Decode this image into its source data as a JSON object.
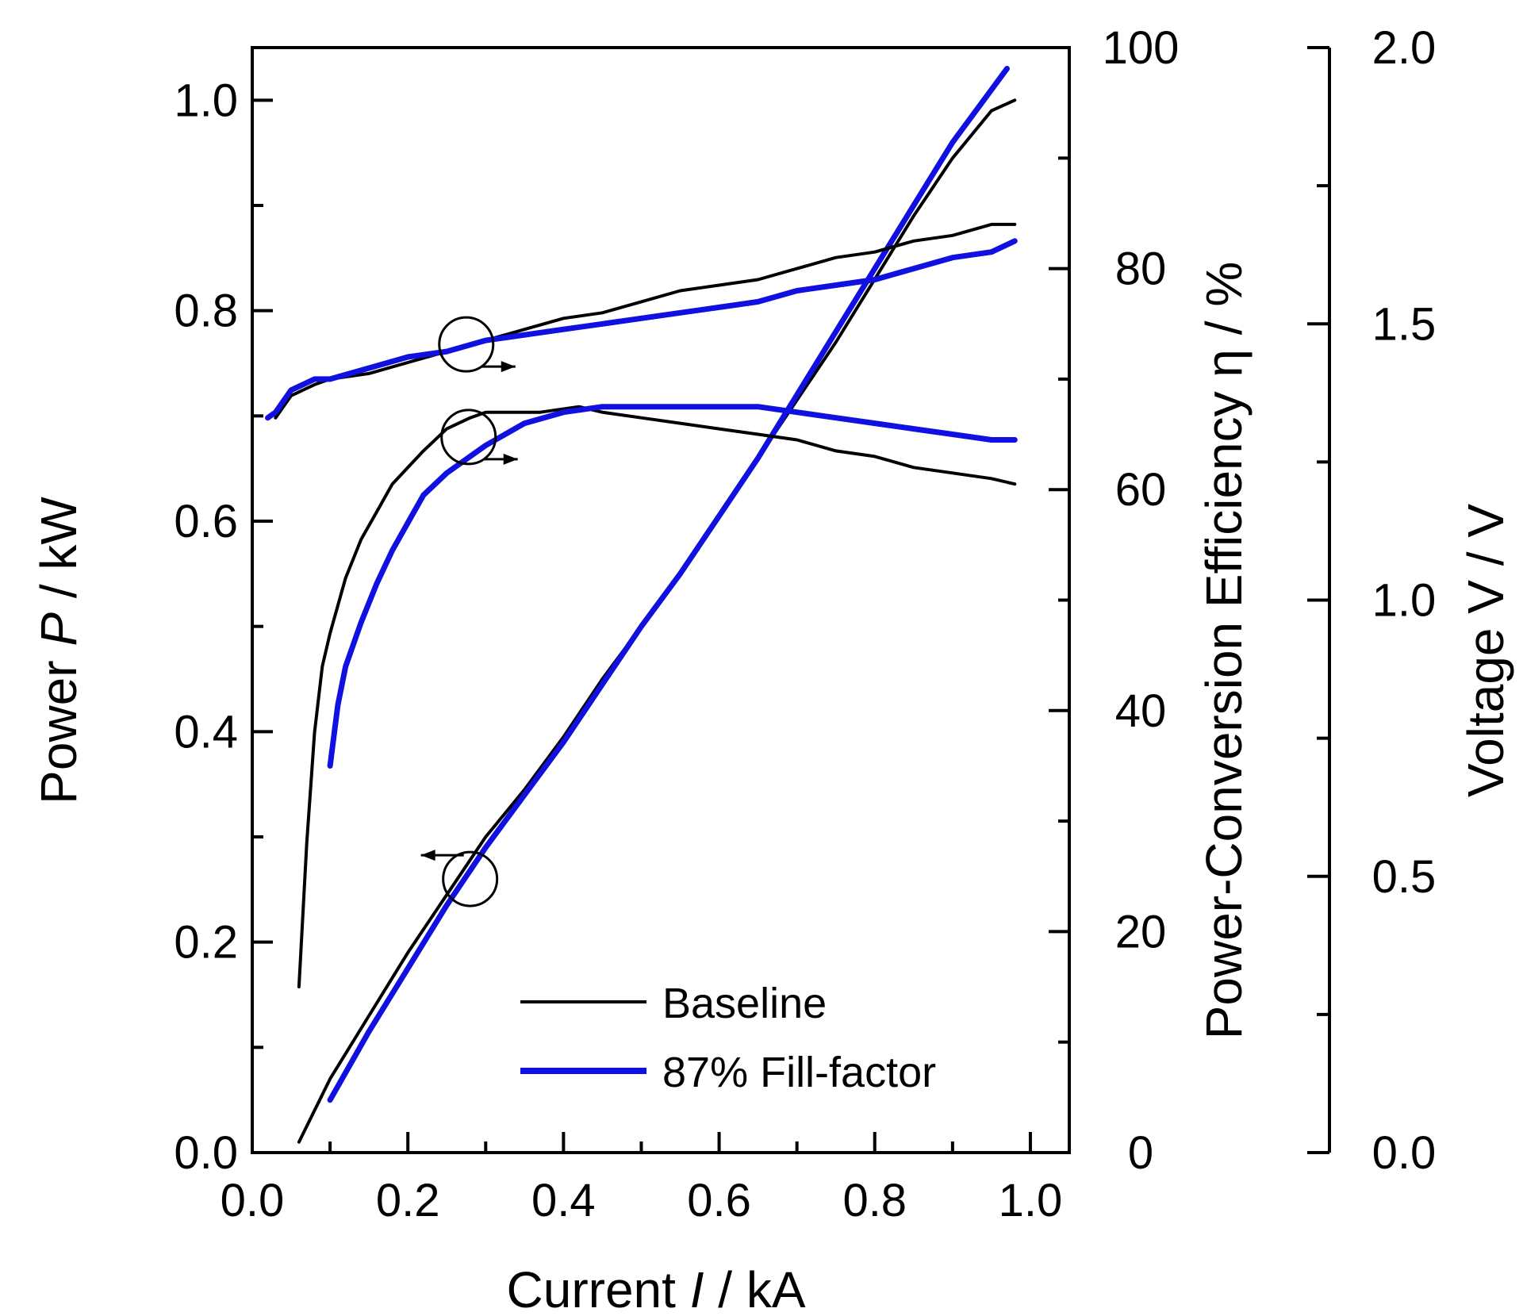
{
  "chart_data": {
    "type": "line",
    "x_axis": {
      "label_parts": [
        "Current ",
        "I",
        " / kA"
      ],
      "range": [
        0,
        1.05
      ],
      "ticks": [
        0.0,
        0.2,
        0.4,
        0.6,
        0.8,
        1.0
      ],
      "tick_labels": [
        "0.0",
        "0.2",
        "0.4",
        "0.6",
        "0.8",
        "1.0"
      ]
    },
    "y_left": {
      "label_parts": [
        "Power ",
        "P",
        " / kW"
      ],
      "range": [
        0,
        1.05
      ],
      "ticks": [
        0.0,
        0.2,
        0.4,
        0.6,
        0.8,
        1.0
      ],
      "tick_labels": [
        "0.0",
        "0.2",
        "0.4",
        "0.6",
        "0.8",
        "1.0"
      ]
    },
    "y_mid": {
      "label": "Power-Conversion Efficiency η / %",
      "range": [
        0,
        100
      ],
      "ticks": [
        0,
        20,
        40,
        60,
        80,
        100
      ],
      "tick_labels": [
        "0",
        "20",
        "40",
        "60",
        "80",
        "100"
      ]
    },
    "y_right": {
      "label": "Voltage V / V",
      "range": [
        0,
        2.0
      ],
      "ticks": [
        0.0,
        0.5,
        1.0,
        1.5,
        2.0
      ],
      "tick_labels": [
        "0.0",
        "0.5",
        "1.0",
        "1.5",
        "2.0"
      ]
    },
    "legend": {
      "position": "bottom-right",
      "entries": [
        {
          "label": "Baseline",
          "color": "#000000"
        },
        {
          "label": "87% Fill-factor",
          "color": "#1010e0"
        }
      ]
    },
    "series": [
      {
        "name": "Baseline",
        "quantity": "power",
        "axis": "y_left",
        "color": "#000000",
        "x": [
          0.06,
          0.1,
          0.15,
          0.2,
          0.25,
          0.3,
          0.35,
          0.4,
          0.45,
          0.5,
          0.55,
          0.6,
          0.65,
          0.7,
          0.75,
          0.8,
          0.85,
          0.9,
          0.95,
          0.98
        ],
        "y": [
          0.01,
          0.07,
          0.13,
          0.19,
          0.245,
          0.3,
          0.345,
          0.395,
          0.45,
          0.5,
          0.55,
          0.605,
          0.66,
          0.715,
          0.77,
          0.83,
          0.89,
          0.945,
          0.99,
          1.0
        ]
      },
      {
        "name": "87% Fill-factor",
        "quantity": "power",
        "axis": "y_left",
        "color": "#1010e0",
        "x": [
          0.1,
          0.15,
          0.2,
          0.25,
          0.3,
          0.35,
          0.4,
          0.45,
          0.5,
          0.55,
          0.6,
          0.65,
          0.7,
          0.75,
          0.8,
          0.85,
          0.9,
          0.95,
          0.97
        ],
        "y": [
          0.05,
          0.115,
          0.175,
          0.235,
          0.29,
          0.34,
          0.39,
          0.445,
          0.5,
          0.55,
          0.605,
          0.66,
          0.72,
          0.78,
          0.84,
          0.9,
          0.96,
          1.01,
          1.03
        ]
      },
      {
        "name": "Baseline",
        "quantity": "efficiency",
        "axis": "y_mid",
        "color": "#000000",
        "x": [
          0.06,
          0.07,
          0.08,
          0.09,
          0.1,
          0.12,
          0.14,
          0.16,
          0.18,
          0.2,
          0.22,
          0.25,
          0.28,
          0.3,
          0.33,
          0.37,
          0.42,
          0.45,
          0.5,
          0.55,
          0.6,
          0.65,
          0.7,
          0.75,
          0.8,
          0.85,
          0.9,
          0.95,
          0.98
        ],
        "y": [
          15,
          28,
          38,
          44,
          47,
          52,
          55.5,
          58,
          60.5,
          62,
          63.5,
          65.5,
          66.5,
          67,
          67,
          67,
          67.5,
          67,
          66.5,
          66,
          65.5,
          65,
          64.5,
          63.5,
          63,
          62,
          61.5,
          61,
          60.5
        ]
      },
      {
        "name": "87% Fill-factor",
        "quantity": "efficiency",
        "axis": "y_mid",
        "color": "#1010e0",
        "x": [
          0.1,
          0.11,
          0.12,
          0.14,
          0.16,
          0.18,
          0.2,
          0.22,
          0.25,
          0.28,
          0.3,
          0.35,
          0.4,
          0.45,
          0.5,
          0.55,
          0.6,
          0.65,
          0.7,
          0.75,
          0.8,
          0.85,
          0.9,
          0.95,
          0.98
        ],
        "y": [
          35,
          40.5,
          44,
          48,
          51.5,
          54.5,
          57,
          59.5,
          61.5,
          63,
          64,
          66,
          67,
          67.5,
          67.5,
          67.5,
          67.5,
          67.5,
          67,
          66.5,
          66,
          65.5,
          65,
          64.5,
          64.5
        ]
      },
      {
        "name": "Baseline",
        "quantity": "voltage",
        "axis": "y_right",
        "color": "#000000",
        "x": [
          0.03,
          0.05,
          0.08,
          0.1,
          0.15,
          0.2,
          0.25,
          0.3,
          0.35,
          0.4,
          0.45,
          0.5,
          0.55,
          0.6,
          0.65,
          0.7,
          0.75,
          0.8,
          0.85,
          0.9,
          0.95,
          0.98
        ],
        "y": [
          1.33,
          1.37,
          1.39,
          1.4,
          1.41,
          1.43,
          1.45,
          1.47,
          1.49,
          1.51,
          1.52,
          1.54,
          1.56,
          1.57,
          1.58,
          1.6,
          1.62,
          1.63,
          1.65,
          1.66,
          1.68,
          1.68
        ]
      },
      {
        "name": "87% Fill-factor",
        "quantity": "voltage",
        "axis": "y_right",
        "color": "#1010e0",
        "x": [
          0.02,
          0.03,
          0.05,
          0.08,
          0.1,
          0.15,
          0.2,
          0.25,
          0.3,
          0.35,
          0.4,
          0.45,
          0.5,
          0.55,
          0.6,
          0.65,
          0.7,
          0.75,
          0.8,
          0.85,
          0.9,
          0.95,
          0.98
        ],
        "y": [
          1.33,
          1.34,
          1.38,
          1.4,
          1.4,
          1.42,
          1.44,
          1.45,
          1.47,
          1.48,
          1.49,
          1.5,
          1.51,
          1.52,
          1.53,
          1.54,
          1.56,
          1.57,
          1.58,
          1.6,
          1.62,
          1.63,
          1.65
        ]
      }
    ],
    "annotations": [
      {
        "type": "circle-arrow",
        "target": "voltage curves",
        "x": 0.275,
        "y": 0.768,
        "arrow": "right"
      },
      {
        "type": "circle-arrow",
        "target": "efficiency curves",
        "x": 0.278,
        "y": 0.68,
        "arrow": "right"
      },
      {
        "type": "circle-arrow",
        "target": "power curves",
        "x": 0.28,
        "y": 0.26,
        "arrow": "left"
      }
    ]
  }
}
